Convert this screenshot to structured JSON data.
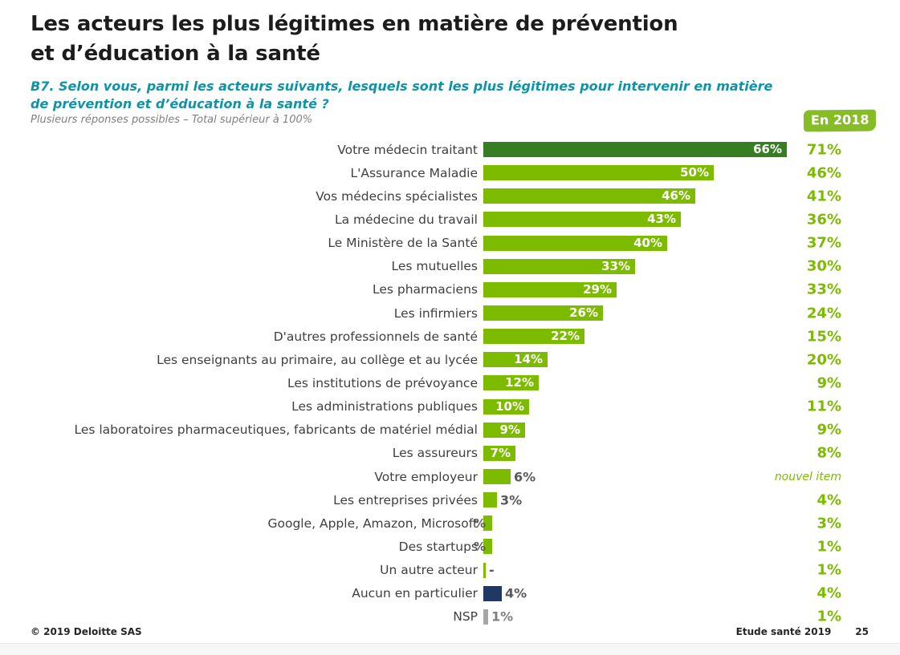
{
  "header": {
    "title_lines": [
      "Les acteurs les plus légitimes en matière de prévention",
      "et d’éducation à la santé"
    ],
    "question_lines": [
      "B7. Selon vous, parmi les acteurs suivants, lesquels sont les plus légitimes pour intervenir en matière",
      "de prévention et d’éducation à la santé ?"
    ],
    "note": "Plusieurs réponses possibles – Total supérieur à 100%",
    "badge_2018": "En 2018"
  },
  "colors": {
    "brand_green": "#7cbb00",
    "dark_green": "#377d23",
    "navy": "#1f3864",
    "gray_bar": "#a6a6a6",
    "teal_question": "#0e93a7",
    "label_text": "#3f3f3f",
    "outside_label": "#595959",
    "badge_bg": "#86bc25"
  },
  "chart_data": {
    "type": "bar",
    "orientation": "horizontal",
    "unit": "%",
    "series": [
      "2019 (bars)",
      "En 2018 (right column)"
    ],
    "value_axis": {
      "min": 0,
      "max_visible": 70,
      "gridlines": false
    },
    "rows": [
      {
        "label": "Votre médecin traitant",
        "value_2019": 66,
        "value_2019_label": "66%",
        "value_2018": 71,
        "value_2018_label": "71%",
        "bar_color": "darkgreen",
        "label_position": "inside"
      },
      {
        "label": "L'Assurance Maladie",
        "value_2019": 50,
        "value_2019_label": "50%",
        "value_2018": 46,
        "value_2018_label": "46%",
        "bar_color": "green",
        "label_position": "inside"
      },
      {
        "label": "Vos médecins spécialistes",
        "value_2019": 46,
        "value_2019_label": "46%",
        "value_2018": 41,
        "value_2018_label": "41%",
        "bar_color": "green",
        "label_position": "inside"
      },
      {
        "label": "La médecine du travail",
        "value_2019": 43,
        "value_2019_label": "43%",
        "value_2018": 36,
        "value_2018_label": "36%",
        "bar_color": "green",
        "label_position": "inside"
      },
      {
        "label": "Le Ministère de la Santé",
        "value_2019": 40,
        "value_2019_label": "40%",
        "value_2018": 37,
        "value_2018_label": "37%",
        "bar_color": "green",
        "label_position": "inside"
      },
      {
        "label": "Les mutuelles",
        "value_2019": 33,
        "value_2019_label": "33%",
        "value_2018": 30,
        "value_2018_label": "30%",
        "bar_color": "green",
        "label_position": "inside"
      },
      {
        "label": "Les pharmaciens",
        "value_2019": 29,
        "value_2019_label": "29%",
        "value_2018": 33,
        "value_2018_label": "33%",
        "bar_color": "green",
        "label_position": "inside"
      },
      {
        "label": "Les infirmiers",
        "value_2019": 26,
        "value_2019_label": "26%",
        "value_2018": 24,
        "value_2018_label": "24%",
        "bar_color": "green",
        "label_position": "inside"
      },
      {
        "label": "D'autres professionnels de santé",
        "value_2019": 22,
        "value_2019_label": "22%",
        "value_2018": 15,
        "value_2018_label": "15%",
        "bar_color": "green",
        "label_position": "inside"
      },
      {
        "label": "Les enseignants au primaire, au collège et au lycée",
        "value_2019": 14,
        "value_2019_label": "14%",
        "value_2018": 20,
        "value_2018_label": "20%",
        "bar_color": "green",
        "label_position": "inside"
      },
      {
        "label": "Les institutions de prévoyance",
        "value_2019": 12,
        "value_2019_label": "12%",
        "value_2018": 9,
        "value_2018_label": "9%",
        "bar_color": "green",
        "label_position": "inside"
      },
      {
        "label": "Les administrations publiques",
        "value_2019": 10,
        "value_2019_label": "10%",
        "value_2018": 11,
        "value_2018_label": "11%",
        "bar_color": "green",
        "label_position": "inside"
      },
      {
        "label": "Les laboratoires pharmaceutiques, fabricants de matériel médial",
        "value_2019": 9,
        "value_2019_label": "9%",
        "value_2018": 9,
        "value_2018_label": "9%",
        "bar_color": "green",
        "label_position": "inside"
      },
      {
        "label": "Les assureurs",
        "value_2019": 7,
        "value_2019_label": "7%",
        "value_2018": 8,
        "value_2018_label": "8%",
        "bar_color": "green",
        "label_position": "inside"
      },
      {
        "label": "Votre employeur",
        "value_2019": 6,
        "value_2019_label": "6%",
        "value_2018": null,
        "value_2018_label": "nouvel item",
        "value_2018_style": "nouvel",
        "bar_color": "green",
        "label_position": "outside"
      },
      {
        "label": "Les entreprises privées",
        "value_2019": 3,
        "value_2019_label": "3%",
        "value_2018": 4,
        "value_2018_label": "4%",
        "bar_color": "green",
        "label_position": "outside"
      },
      {
        "label": "Google, Apple, Amazon, Microsoft",
        "value_2019": 2,
        "value_2019_label": "%",
        "value_2018": 3,
        "value_2018_label": "3%",
        "bar_color": "green",
        "label_position": "clip-left"
      },
      {
        "label": "Des startups",
        "value_2019": 2,
        "value_2019_label": "%",
        "value_2018": 1,
        "value_2018_label": "1%",
        "bar_color": "green",
        "label_position": "clip-left"
      },
      {
        "label": "Un autre acteur",
        "value_2019": 0.5,
        "value_2019_label": "-",
        "value_2018": 1,
        "value_2018_label": "1%",
        "bar_color": "green",
        "label_position": "outside"
      },
      {
        "label": "Aucun en particulier",
        "value_2019": 4,
        "value_2019_label": "4%",
        "value_2018": 4,
        "value_2018_label": "4%",
        "bar_color": "navy",
        "label_position": "outside"
      },
      {
        "label": "NSP",
        "value_2019": 1,
        "value_2019_label": "1%",
        "value_2018": 1,
        "value_2018_label": "1%",
        "bar_color": "gray",
        "label_position": "outside",
        "outside_label_color": "#7f7f7f"
      }
    ]
  },
  "footer": {
    "copyright": "© 2019 Deloitte SAS",
    "study": "Etude santé 2019",
    "page_number": "25"
  }
}
